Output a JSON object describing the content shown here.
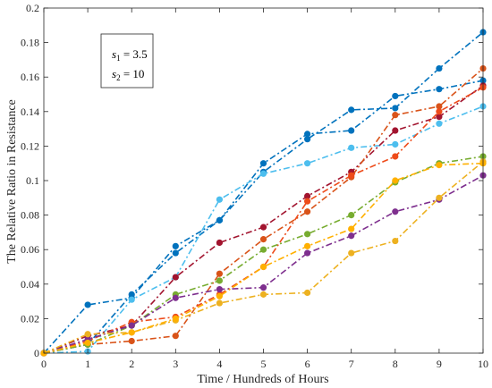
{
  "chart_data": {
    "type": "line",
    "title": "",
    "xlabel": "Time / Hundreds of Hours",
    "ylabel": "The Relative Ratio in Resistance",
    "xlim": [
      0,
      10
    ],
    "ylim": [
      0,
      0.2
    ],
    "x_ticks": [
      "0",
      "1",
      "2",
      "3",
      "4",
      "5",
      "6",
      "7",
      "8",
      "9",
      "10"
    ],
    "y_ticks": [
      "0",
      "0.02",
      "0.04",
      "0.06",
      "0.08",
      "0.1",
      "0.12",
      "0.14",
      "0.16",
      "0.18",
      "0.2"
    ],
    "grid": false,
    "line_style": "dash-dot with circle markers",
    "annotation": {
      "line1_sym": "s",
      "line1_sub": "1",
      "line1_val": " = 3.5",
      "line2_sym": "s",
      "line2_sub": "2",
      "line2_val": " = 10"
    },
    "x": [
      0,
      1,
      2,
      3,
      4,
      5,
      6,
      7,
      8,
      9,
      10
    ],
    "series": [
      {
        "color": "#0072BD",
        "values": [
          0,
          0.028,
          0.032,
          0.062,
          0.077,
          0.11,
          0.127,
          0.129,
          0.149,
          0.153,
          0.158
        ]
      },
      {
        "color": "#0072BD",
        "values": [
          0,
          0.005,
          0.034,
          0.058,
          0.077,
          0.105,
          0.124,
          0.141,
          0.142,
          0.165,
          0.186
        ]
      },
      {
        "color": "#4DBEEE",
        "values": [
          0,
          0.001,
          0.031,
          0.044,
          0.089,
          0.104,
          0.11,
          0.119,
          0.121,
          0.133,
          0.143
        ]
      },
      {
        "color": "#A2142F",
        "values": [
          0,
          0.01,
          0.016,
          0.044,
          0.064,
          0.073,
          0.091,
          0.105,
          0.129,
          0.137,
          0.155
        ]
      },
      {
        "color": "#D95319",
        "values": [
          0,
          0.005,
          0.007,
          0.01,
          0.046,
          0.066,
          0.082,
          0.102,
          0.138,
          0.143,
          0.165
        ]
      },
      {
        "color": "#EE4B1A",
        "values": [
          0,
          0.007,
          0.018,
          0.021,
          0.034,
          0.05,
          0.088,
          0.103,
          0.114,
          0.14,
          0.154
        ]
      },
      {
        "color": "#77AC30",
        "values": [
          0,
          0.005,
          0.016,
          0.034,
          0.042,
          0.06,
          0.069,
          0.08,
          0.099,
          0.11,
          0.114
        ]
      },
      {
        "color": "#7E2F8E",
        "values": [
          0,
          0.008,
          0.016,
          0.032,
          0.037,
          0.038,
          0.058,
          0.068,
          0.082,
          0.089,
          0.103
        ]
      },
      {
        "color": "#EDB120",
        "values": [
          0,
          0.011,
          0.012,
          0.019,
          0.029,
          0.034,
          0.035,
          0.058,
          0.065,
          0.09,
          0.111
        ]
      },
      {
        "color": "#FFB000",
        "values": [
          0,
          0.006,
          0.012,
          0.02,
          0.033,
          0.05,
          0.062,
          0.072,
          0.1,
          0.109,
          0.11
        ]
      }
    ]
  }
}
